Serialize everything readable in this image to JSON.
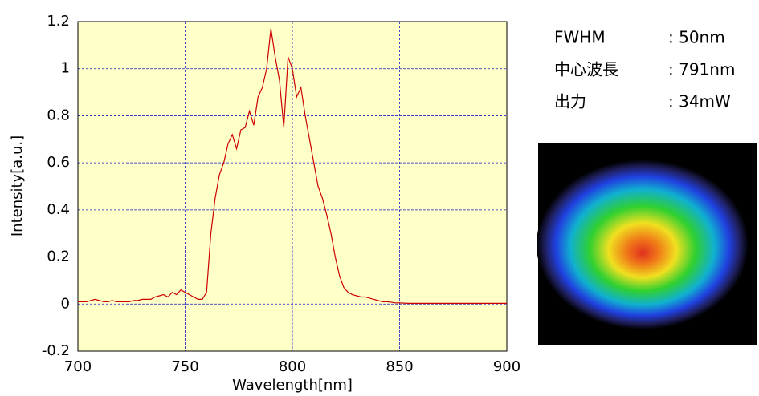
{
  "chart_data": {
    "type": "line",
    "xlabel": "Wavelength[nm]",
    "ylabel": "Intensity[a.u.]",
    "x": [
      700,
      702,
      704,
      706,
      708,
      710,
      712,
      714,
      716,
      718,
      720,
      722,
      724,
      726,
      728,
      730,
      732,
      734,
      736,
      738,
      740,
      742,
      744,
      746,
      748,
      750,
      752,
      754,
      756,
      758,
      760,
      762,
      764,
      766,
      768,
      770,
      772,
      774,
      776,
      778,
      780,
      782,
      784,
      786,
      788,
      790,
      792,
      794,
      796,
      798,
      800,
      802,
      804,
      806,
      808,
      810,
      812,
      814,
      816,
      818,
      820,
      822,
      824,
      826,
      828,
      830,
      832,
      834,
      836,
      838,
      840,
      842,
      844,
      846,
      848,
      850,
      852,
      854,
      856,
      858,
      860,
      862,
      864,
      866,
      868,
      870,
      872,
      874,
      876,
      878,
      880,
      882,
      884,
      886,
      888,
      890,
      892,
      894,
      896,
      898,
      900
    ],
    "values": [
      0.01,
      0.01,
      0.01,
      0.015,
      0.02,
      0.015,
      0.01,
      0.01,
      0.015,
      0.01,
      0.01,
      0.01,
      0.01,
      0.015,
      0.015,
      0.02,
      0.02,
      0.02,
      0.03,
      0.035,
      0.04,
      0.03,
      0.05,
      0.04,
      0.06,
      0.05,
      0.04,
      0.03,
      0.02,
      0.02,
      0.05,
      0.3,
      0.45,
      0.55,
      0.6,
      0.68,
      0.72,
      0.66,
      0.74,
      0.75,
      0.82,
      0.76,
      0.88,
      0.92,
      1.0,
      1.17,
      1.05,
      0.95,
      0.75,
      1.05,
      1.0,
      0.88,
      0.92,
      0.8,
      0.7,
      0.6,
      0.5,
      0.45,
      0.38,
      0.3,
      0.2,
      0.12,
      0.07,
      0.05,
      0.04,
      0.035,
      0.03,
      0.03,
      0.025,
      0.02,
      0.015,
      0.01,
      0.01,
      0.008,
      0.005,
      0.005,
      0.004,
      0.003,
      0.003,
      0.003,
      0.003,
      0.003,
      0.003,
      0.003,
      0.003,
      0.003,
      0.003,
      0.003,
      0.003,
      0.003,
      0.003,
      0.003,
      0.003,
      0.003,
      0.003,
      0.003,
      0.003,
      0.003,
      0.003,
      0.003,
      0.003
    ],
    "color": "#cc0000",
    "xlim": [
      700,
      900
    ],
    "xticks": [
      700,
      750,
      800,
      850,
      900
    ],
    "ylim": [
      -0.2,
      1.2
    ],
    "yticks": [
      -0.2,
      0,
      0.2,
      0.4,
      0.6,
      0.8,
      1,
      1.2
    ],
    "grid": true
  },
  "info": [
    {
      "label": "FWHM",
      "value": ": 50nm"
    },
    {
      "label": "中心波長",
      "value": ": 791nm"
    },
    {
      "label": "出力",
      "value": ": 34mW"
    }
  ]
}
